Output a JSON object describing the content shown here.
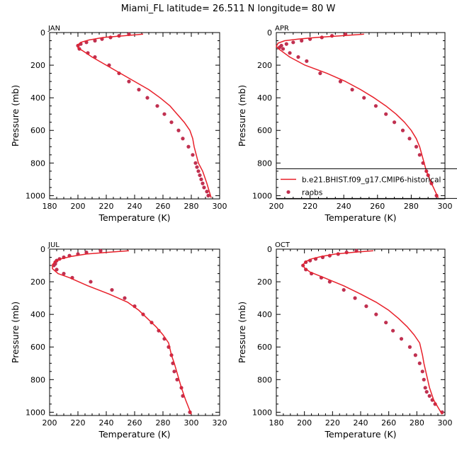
{
  "title": "Miami_FL  latitude= 26.511 N longitude= 80 W",
  "colors": {
    "model": "#e8202a",
    "obs": "#c03050",
    "axis": "#000000"
  },
  "legend": {
    "model_label": "b.e21.BHIST.f09_g17.CMIP6-historical",
    "obs_label": "raobs"
  },
  "chart_data": [
    {
      "type": "line",
      "month": "JAN",
      "xlabel": "Temperature (K)",
      "ylabel": "Pressure (mb)",
      "xlim": [
        180,
        300
      ],
      "xticks": [
        180,
        200,
        220,
        240,
        260,
        280,
        300
      ],
      "ylim": [
        0,
        1020
      ],
      "yticks": [
        0,
        200,
        400,
        600,
        800,
        1000
      ],
      "model": {
        "name": "b.e21.BHIST.f09_g17.CMIP6-historical",
        "temperature": [
          246,
          232,
          218,
          208,
          202,
          200,
          200,
          203,
          210,
          220,
          230,
          240,
          250,
          258,
          265,
          270,
          275,
          279,
          281,
          282,
          285,
          288,
          291,
          294
        ],
        "pressure": [
          10,
          20,
          30,
          45,
          60,
          75,
          95,
          110,
          150,
          200,
          250,
          300,
          350,
          400,
          450,
          500,
          550,
          600,
          650,
          700,
          800,
          850,
          925,
          1013
        ]
      },
      "obs": {
        "name": "raobs",
        "temperature": [
          236,
          229,
          223,
          217,
          212,
          206,
          202,
          200,
          201,
          207,
          212,
          222,
          229,
          236,
          243,
          249,
          256,
          261,
          266,
          271,
          274,
          278,
          281,
          283,
          284,
          285,
          286,
          287,
          288,
          289,
          291,
          292
        ],
        "pressure": [
          10,
          20,
          30,
          40,
          50,
          60,
          70,
          80,
          100,
          125,
          150,
          200,
          250,
          300,
          350,
          400,
          450,
          500,
          550,
          600,
          650,
          700,
          750,
          800,
          825,
          850,
          875,
          900,
          925,
          950,
          975,
          1000
        ]
      }
    },
    {
      "type": "line",
      "month": "APR",
      "xlabel": "Temperature (K)",
      "ylabel": "Pressure (mb)",
      "xlim": [
        200,
        300
      ],
      "xticks": [
        200,
        220,
        240,
        260,
        280,
        300
      ],
      "ylim": [
        0,
        1020
      ],
      "yticks": [
        0,
        200,
        400,
        600,
        800,
        1000
      ],
      "model": {
        "name": "b.e21.BHIST.f09_g17.CMIP6-historical",
        "temperature": [
          252,
          238,
          224,
          213,
          205,
          201,
          200,
          202,
          208,
          217,
          230,
          241,
          250,
          258,
          265,
          271,
          276,
          280,
          283,
          285,
          289,
          292,
          296
        ],
        "pressure": [
          10,
          20,
          30,
          40,
          50,
          65,
          85,
          105,
          150,
          200,
          250,
          300,
          350,
          400,
          450,
          500,
          550,
          600,
          650,
          700,
          850,
          925,
          1013
        ]
      },
      "obs": {
        "name": "raobs",
        "temperature": [
          241,
          233,
          227,
          220,
          215,
          210,
          206,
          203,
          202,
          204,
          208,
          213,
          218,
          226,
          238,
          245,
          252,
          259,
          265,
          270,
          275,
          279,
          283,
          285,
          287,
          289,
          290,
          292,
          295
        ],
        "pressure": [
          10,
          20,
          30,
          40,
          50,
          60,
          70,
          80,
          90,
          100,
          125,
          150,
          175,
          250,
          300,
          350,
          400,
          450,
          500,
          550,
          600,
          650,
          700,
          750,
          800,
          850,
          875,
          925,
          1000
        ]
      }
    },
    {
      "type": "line",
      "month": "JUL",
      "xlabel": "Temperature (K)",
      "ylabel": "Pressure (mb)",
      "xlim": [
        200,
        320
      ],
      "xticks": [
        200,
        220,
        240,
        260,
        280,
        300,
        320
      ],
      "ylim": [
        0,
        1020
      ],
      "yticks": [
        0,
        200,
        400,
        600,
        800,
        1000
      ],
      "model": {
        "name": "b.e21.BHIST.f09_g17.CMIP6-historical",
        "temperature": [
          256,
          240,
          226,
          215,
          208,
          204,
          202,
          202,
          206,
          214,
          227,
          242,
          255,
          263,
          269,
          275,
          280,
          284,
          286,
          288,
          293,
          296,
          300
        ],
        "pressure": [
          10,
          20,
          30,
          45,
          60,
          75,
          95,
          120,
          150,
          175,
          225,
          275,
          325,
          375,
          425,
          475,
          525,
          575,
          650,
          700,
          850,
          925,
          1013
        ]
      },
      "obs": {
        "name": "raobs",
        "temperature": [
          236,
          226,
          220,
          214,
          210,
          207,
          205,
          204,
          204,
          203,
          205,
          210,
          216,
          229,
          244,
          253,
          260,
          266,
          272,
          277,
          281,
          284,
          286,
          287,
          288,
          290,
          293,
          294,
          299
        ],
        "pressure": [
          10,
          20,
          30,
          40,
          50,
          60,
          70,
          80,
          90,
          100,
          125,
          150,
          175,
          200,
          250,
          300,
          350,
          400,
          450,
          500,
          550,
          600,
          650,
          700,
          750,
          800,
          850,
          900,
          1000
        ]
      }
    },
    {
      "type": "line",
      "month": "OCT",
      "xlabel": "Temperature (K)",
      "ylabel": "Pressure (mb)",
      "xlim": [
        180,
        300
      ],
      "xticks": [
        180,
        200,
        220,
        240,
        260,
        280,
        300
      ],
      "ylim": [
        0,
        1020
      ],
      "yticks": [
        0,
        200,
        400,
        600,
        800,
        1000
      ],
      "model": {
        "name": "b.e21.BHIST.f09_g17.CMIP6-historical",
        "temperature": [
          249,
          234,
          222,
          212,
          205,
          201,
          199,
          200,
          204,
          214,
          228,
          240,
          251,
          260,
          267,
          273,
          278,
          282,
          284,
          285,
          289,
          292,
          298
        ],
        "pressure": [
          10,
          20,
          30,
          45,
          60,
          75,
          95,
          115,
          140,
          175,
          225,
          275,
          325,
          375,
          425,
          475,
          525,
          575,
          650,
          700,
          850,
          925,
          1013
        ]
      },
      "obs": {
        "name": "raobs",
        "temperature": [
          237,
          230,
          224,
          218,
          213,
          208,
          204,
          201,
          199,
          201,
          205,
          212,
          218,
          228,
          236,
          244,
          251,
          258,
          263,
          269,
          275,
          279,
          282,
          284,
          285,
          286,
          287,
          289,
          291,
          293,
          298
        ],
        "pressure": [
          10,
          20,
          30,
          40,
          50,
          60,
          70,
          80,
          100,
          125,
          150,
          175,
          200,
          250,
          300,
          350,
          400,
          450,
          500,
          550,
          600,
          650,
          700,
          750,
          800,
          850,
          875,
          900,
          925,
          950,
          1000
        ]
      }
    }
  ]
}
